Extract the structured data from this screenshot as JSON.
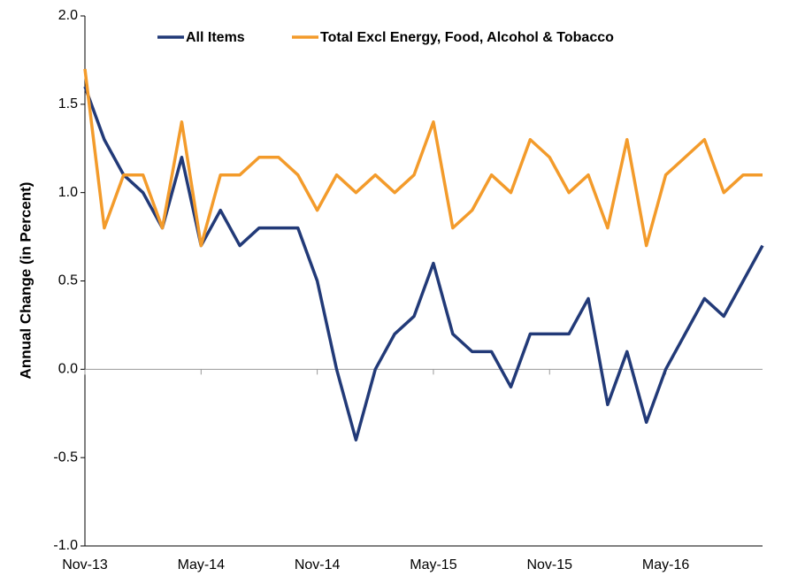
{
  "chart_data": {
    "type": "line",
    "y_label": "Annual Change (in Percent)",
    "categories": [
      "Nov-13",
      null,
      null,
      null,
      null,
      null,
      "May-14",
      null,
      null,
      null,
      null,
      null,
      "Nov-14",
      null,
      null,
      null,
      null,
      null,
      "May-15",
      null,
      null,
      null,
      null,
      null,
      "Nov-15",
      null,
      null,
      null,
      null,
      null,
      "May-16",
      null,
      null,
      null,
      null,
      null
    ],
    "series": [
      {
        "name": "All Items",
        "color": "#223a78",
        "values": [
          1.6,
          1.3,
          1.1,
          1.0,
          0.8,
          1.2,
          0.7,
          0.9,
          0.7,
          0.8,
          0.8,
          0.8,
          0.5,
          0.0,
          -0.4,
          0.0,
          0.2,
          0.3,
          0.6,
          0.2,
          0.1,
          0.1,
          -0.1,
          0.2,
          0.2,
          0.2,
          0.4,
          -0.2,
          0.1,
          -0.3,
          0.0,
          0.2,
          0.4,
          0.3,
          0.5,
          0.7
        ]
      },
      {
        "name": "Total Excl Energy, Food, Alcohol & Tobacco",
        "color": "#f39b2b",
        "values": [
          1.7,
          0.8,
          1.1,
          1.1,
          0.8,
          1.4,
          0.7,
          1.1,
          1.1,
          1.2,
          1.2,
          1.1,
          0.9,
          1.1,
          1.0,
          1.1,
          1.0,
          1.1,
          1.4,
          0.8,
          0.9,
          1.1,
          1.0,
          1.3,
          1.2,
          1.0,
          1.1,
          0.8,
          1.3,
          0.7,
          1.1,
          1.2,
          1.3,
          1.0,
          1.1,
          1.1
        ]
      }
    ],
    "ylim": [
      -1,
      2
    ],
    "yticks": [
      {
        "value": -1,
        "label": "-1.0"
      },
      -0.5,
      {
        "value": 0,
        "label": "0.0"
      },
      0.5,
      {
        "value": 1,
        "label": "1.0"
      },
      1.5,
      {
        "value": 2,
        "label": "2.0"
      }
    ],
    "legend": "top",
    "grid": false
  }
}
